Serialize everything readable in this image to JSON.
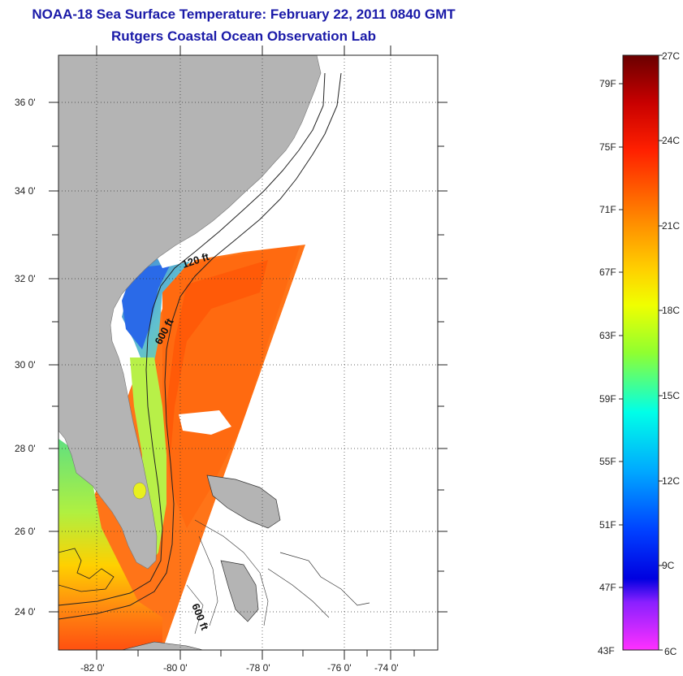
{
  "title": {
    "line1": "NOAA-18 Sea Surface Temperature:  February 22, 2011 0840 GMT",
    "line2": "Rutgers Coastal Ocean Observation Lab"
  },
  "map": {
    "lat_labels": [
      "36 0'",
      "34 0'",
      "32 0'",
      "30 0'",
      "28 0'",
      "26 0'",
      "24 0'"
    ],
    "lon_labels": [
      "-82 0'",
      "-80 0'",
      "-78 0'",
      "-76 0'",
      "-74 0'"
    ],
    "contour_labels": [
      "120 ft",
      "600 ft",
      "600 ft"
    ]
  },
  "colorbar": {
    "fahrenheit": [
      "79F",
      "75F",
      "71F",
      "67F",
      "63F",
      "59F",
      "55F",
      "51F",
      "47F",
      "43F"
    ],
    "celsius": [
      "27C",
      "24C",
      "21C",
      "18C",
      "15C",
      "12C",
      "9C",
      "6C"
    ],
    "colors": [
      "#6a0000",
      "#c80000",
      "#ff3000",
      "#ff8c00",
      "#ffd000",
      "#f0ff00",
      "#80ff40",
      "#00ffe0",
      "#00a8ff",
      "#0030ff",
      "#0000e0",
      "#8000ff",
      "#ff30ff"
    ]
  },
  "colors": {
    "title": "#1a1aa8",
    "land": "#b4b4b4",
    "water_warm": "#ff7a10",
    "water_cool": "#2a70e0"
  }
}
